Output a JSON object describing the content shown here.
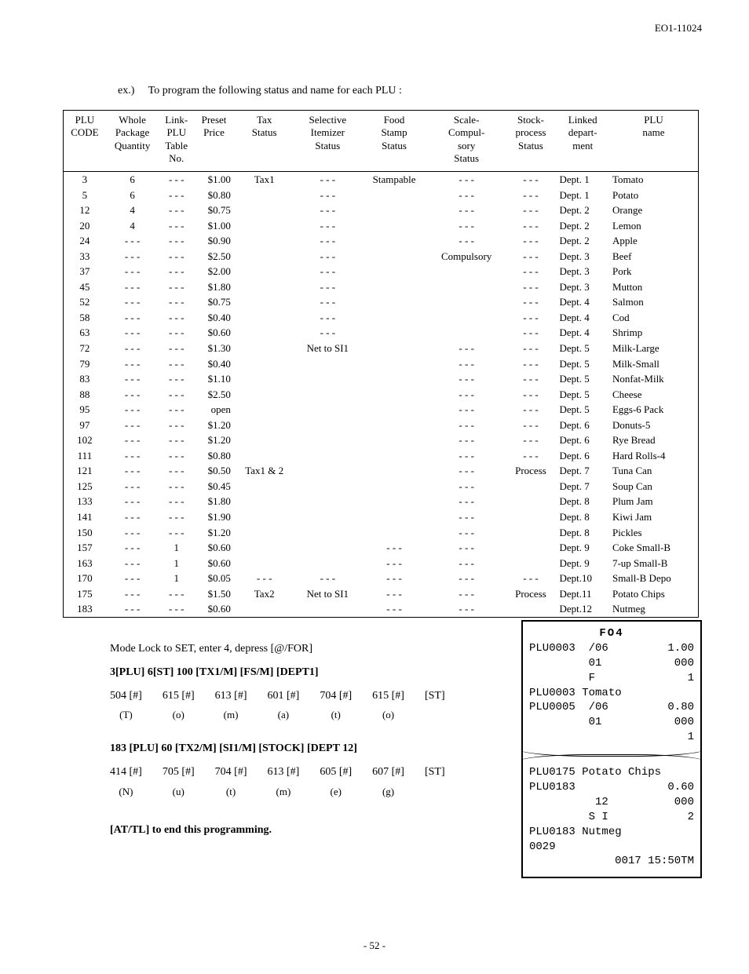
{
  "doc": {
    "page_code": "EO1-11024",
    "example_label": "ex.)",
    "example_text": "To program the following status and name for each PLU :",
    "page_number": "- 52 -"
  },
  "table": {
    "headers": [
      "PLU\nCODE",
      "Whole\nPackage\nQuantity",
      "Link-\nPLU\nTable\nNo.",
      "Preset\nPrice",
      "Tax\nStatus",
      "Selective\nItemizer\nStatus",
      "Food\nStamp\nStatus",
      "Scale-\nCompul-\nsory\nStatus",
      "Stock-\nprocess\nStatus",
      "Linked\ndepart-\nment",
      "PLU\nname"
    ],
    "rows": [
      {
        "code": "3",
        "wpq": "6",
        "link": "- - -",
        "price": "$1.00",
        "tax": "Tax1",
        "si": "- - -",
        "fs": "Stampable",
        "scale": "- - -",
        "stock": "- - -",
        "dept": "Dept. 1",
        "name": "Tomato"
      },
      {
        "code": "5",
        "wpq": "6",
        "link": "- - -",
        "price": "$0.80",
        "tax": "",
        "si": "- - -",
        "fs": "",
        "scale": "- - -",
        "stock": "- - -",
        "dept": "Dept. 1",
        "name": "Potato"
      },
      {
        "code": "12",
        "wpq": "4",
        "link": "- - -",
        "price": "$0.75",
        "tax": "",
        "si": "- - -",
        "fs": "",
        "scale": "- - -",
        "stock": "- - -",
        "dept": "Dept. 2",
        "name": "Orange"
      },
      {
        "code": "20",
        "wpq": "4",
        "link": "- - -",
        "price": "$1.00",
        "tax": "",
        "si": "- - -",
        "fs": "",
        "scale": "- - -",
        "stock": "- - -",
        "dept": "Dept. 2",
        "name": "Lemon"
      },
      {
        "code": "24",
        "wpq": "- - -",
        "link": "- - -",
        "price": "$0.90",
        "tax": "",
        "si": "- - -",
        "fs": "",
        "scale": "- - -",
        "stock": "- - -",
        "dept": "Dept. 2",
        "name": "Apple"
      },
      {
        "code": "33",
        "wpq": "- - -",
        "link": "- - -",
        "price": "$2.50",
        "tax": "",
        "si": "- - -",
        "fs": "",
        "scale": "Compulsory",
        "stock": "- - -",
        "dept": "Dept. 3",
        "name": "Beef"
      },
      {
        "code": "37",
        "wpq": "- - -",
        "link": "- - -",
        "price": "$2.00",
        "tax": "",
        "si": "- - -",
        "fs": "",
        "scale": "",
        "stock": "- - -",
        "dept": "Dept. 3",
        "name": "Pork"
      },
      {
        "code": "45",
        "wpq": "- - -",
        "link": "- - -",
        "price": "$1.80",
        "tax": "",
        "si": "- - -",
        "fs": "",
        "scale": "",
        "stock": "- - -",
        "dept": "Dept. 3",
        "name": "Mutton"
      },
      {
        "code": "52",
        "wpq": "- - -",
        "link": "- - -",
        "price": "$0.75",
        "tax": "",
        "si": "- - -",
        "fs": "",
        "scale": "",
        "stock": "- - -",
        "dept": "Dept. 4",
        "name": "Salmon"
      },
      {
        "code": "58",
        "wpq": "- - -",
        "link": "- - -",
        "price": "$0.40",
        "tax": "",
        "si": "- - -",
        "fs": "",
        "scale": "",
        "stock": "- - -",
        "dept": "Dept. 4",
        "name": "Cod"
      },
      {
        "code": "63",
        "wpq": "- - -",
        "link": "- - -",
        "price": "$0.60",
        "tax": "",
        "si": "- - -",
        "fs": "",
        "scale": "",
        "stock": "- - -",
        "dept": "Dept. 4",
        "name": "Shrimp"
      },
      {
        "code": "72",
        "wpq": "- - -",
        "link": "- - -",
        "price": "$1.30",
        "tax": "",
        "si": "Net to SI1",
        "fs": "",
        "scale": "- - -",
        "stock": "- - -",
        "dept": "Dept. 5",
        "name": "Milk-Large"
      },
      {
        "code": "79",
        "wpq": "- - -",
        "link": "- - -",
        "price": "$0.40",
        "tax": "",
        "si": "",
        "fs": "",
        "scale": "- - -",
        "stock": "- - -",
        "dept": "Dept. 5",
        "name": "Milk-Small"
      },
      {
        "code": "83",
        "wpq": "- - -",
        "link": "- - -",
        "price": "$1.10",
        "tax": "",
        "si": "",
        "fs": "",
        "scale": "- - -",
        "stock": "- - -",
        "dept": "Dept. 5",
        "name": "Nonfat-Milk"
      },
      {
        "code": "88",
        "wpq": "- - -",
        "link": "- - -",
        "price": "$2.50",
        "tax": "",
        "si": "",
        "fs": "",
        "scale": "- - -",
        "stock": "- - -",
        "dept": "Dept. 5",
        "name": "Cheese"
      },
      {
        "code": "95",
        "wpq": "- - -",
        "link": "- - -",
        "price": "open",
        "tax": "",
        "si": "",
        "fs": "",
        "scale": "- - -",
        "stock": "- - -",
        "dept": "Dept. 5",
        "name": "Eggs-6 Pack"
      },
      {
        "code": "97",
        "wpq": "- - -",
        "link": "- - -",
        "price": "$1.20",
        "tax": "",
        "si": "",
        "fs": "",
        "scale": "- - -",
        "stock": "- - -",
        "dept": "Dept. 6",
        "name": "Donuts-5"
      },
      {
        "code": "102",
        "wpq": "- - -",
        "link": "- - -",
        "price": "$1.20",
        "tax": "",
        "si": "",
        "fs": "",
        "scale": "- - -",
        "stock": "- - -",
        "dept": "Dept. 6",
        "name": "Rye Bread"
      },
      {
        "code": "111",
        "wpq": "- - -",
        "link": "- - -",
        "price": "$0.80",
        "tax": "",
        "si": "",
        "fs": "",
        "scale": "- - -",
        "stock": "- - -",
        "dept": "Dept. 6",
        "name": "Hard Rolls-4"
      },
      {
        "code": "121",
        "wpq": "- - -",
        "link": "- - -",
        "price": "$0.50",
        "tax": "Tax1 & 2",
        "si": "",
        "fs": "",
        "scale": "- - -",
        "stock": "Process",
        "dept": "Dept. 7",
        "name": "Tuna Can"
      },
      {
        "code": "125",
        "wpq": "- - -",
        "link": "- - -",
        "price": "$0.45",
        "tax": "",
        "si": "",
        "fs": "",
        "scale": "- - -",
        "stock": "",
        "dept": "Dept. 7",
        "name": "Soup Can"
      },
      {
        "code": "133",
        "wpq": "- - -",
        "link": "- - -",
        "price": "$1.80",
        "tax": "",
        "si": "",
        "fs": "",
        "scale": "- - -",
        "stock": "",
        "dept": "Dept. 8",
        "name": "Plum Jam"
      },
      {
        "code": "141",
        "wpq": "- - -",
        "link": "- - -",
        "price": "$1.90",
        "tax": "",
        "si": "",
        "fs": "",
        "scale": "- - -",
        "stock": "",
        "dept": "Dept. 8",
        "name": "Kiwi Jam"
      },
      {
        "code": "150",
        "wpq": "- - -",
        "link": "- - -",
        "price": "$1.20",
        "tax": "",
        "si": "",
        "fs": "",
        "scale": "- - -",
        "stock": "",
        "dept": "Dept. 8",
        "name": "Pickles"
      },
      {
        "code": "157",
        "wpq": "- - -",
        "link": "1",
        "price": "$0.60",
        "tax": "",
        "si": "",
        "fs": "- - -",
        "scale": "- - -",
        "stock": "",
        "dept": "Dept. 9",
        "name": "Coke Small-B"
      },
      {
        "code": "163",
        "wpq": "- - -",
        "link": "1",
        "price": "$0.60",
        "tax": "",
        "si": "",
        "fs": "- - -",
        "scale": "- - -",
        "stock": "",
        "dept": "Dept. 9",
        "name": "7-up Small-B"
      },
      {
        "code": "170",
        "wpq": "- - -",
        "link": "1",
        "price": "$0.05",
        "tax": "- - -",
        "si": "- - -",
        "fs": "- - -",
        "scale": "- - -",
        "stock": "- - -",
        "dept": "Dept.10",
        "name": "Small-B Depo"
      },
      {
        "code": "175",
        "wpq": "- - -",
        "link": "- - -",
        "price": "$1.50",
        "tax": "Tax2",
        "si": "Net to SI1",
        "fs": "- - -",
        "scale": "- - -",
        "stock": "Process",
        "dept": "Dept.11",
        "name": "Potato Chips"
      },
      {
        "code": "183",
        "wpq": "- - -",
        "link": "- - -",
        "price": "$0.60",
        "tax": "",
        "si": "",
        "fs": "- - -",
        "scale": "- - -",
        "stock": "",
        "dept": "Dept.12",
        "name": "Nutmeg"
      }
    ]
  },
  "instructions": {
    "line1": "Mode Lock to SET, enter 4, depress [@/FOR]",
    "line2": "3[PLU] 6[ST] 100 [TX1/M] [FS/M] [DEPT1]",
    "keys1": [
      {
        "k": "504 [#]",
        "s": "(T)"
      },
      {
        "k": "615 [#]",
        "s": "(o)"
      },
      {
        "k": "613 [#]",
        "s": "(m)"
      },
      {
        "k": "601 [#]",
        "s": "(a)"
      },
      {
        "k": "704 [#]",
        "s": "(t)"
      },
      {
        "k": "615 [#]",
        "s": "(o)"
      },
      {
        "k": "[ST]",
        "s": ""
      }
    ],
    "line3": "183 [PLU] 60 [TX2/M] [SI1/M] [STOCK] [DEPT 12]",
    "keys2": [
      {
        "k": "414 [#]",
        "s": "(N)"
      },
      {
        "k": "705 [#]",
        "s": "(u)"
      },
      {
        "k": "704 [#]",
        "s": "(t)"
      },
      {
        "k": "613 [#]",
        "s": "(m)"
      },
      {
        "k": "605 [#]",
        "s": "(e)"
      },
      {
        "k": "607 [#]",
        "s": "(g)"
      },
      {
        "k": "[ST]",
        "s": ""
      }
    ],
    "line4": "[AT/TL] to end this programming."
  },
  "receipt": {
    "title": "FO4",
    "lines_top": [
      {
        "l": "PLU0003  /06",
        "r": "1.00"
      },
      {
        "l": "         01",
        "r": "000"
      },
      {
        "l": "         F",
        "r": "1"
      },
      {
        "l": "PLU0003 Tomato",
        "r": ""
      },
      {
        "l": "PLU0005  /06",
        "r": "0.80"
      },
      {
        "l": "         01",
        "r": "000"
      },
      {
        "l": "",
        "r": "1"
      }
    ],
    "lines_bottom": [
      {
        "l": "PLU0175 Potato Chips",
        "r": ""
      },
      {
        "l": "PLU0183",
        "r": "0.60"
      },
      {
        "l": "          12",
        "r": "000"
      },
      {
        "l": "         S I",
        "r": "2"
      },
      {
        "l": "PLU0183 Nutmeg",
        "r": ""
      },
      {
        "l": "",
        "r": ""
      },
      {
        "l": "0029",
        "r": ""
      },
      {
        "l": "",
        "r": ""
      },
      {
        "l": "",
        "r": "0017 15:50TM"
      }
    ]
  }
}
